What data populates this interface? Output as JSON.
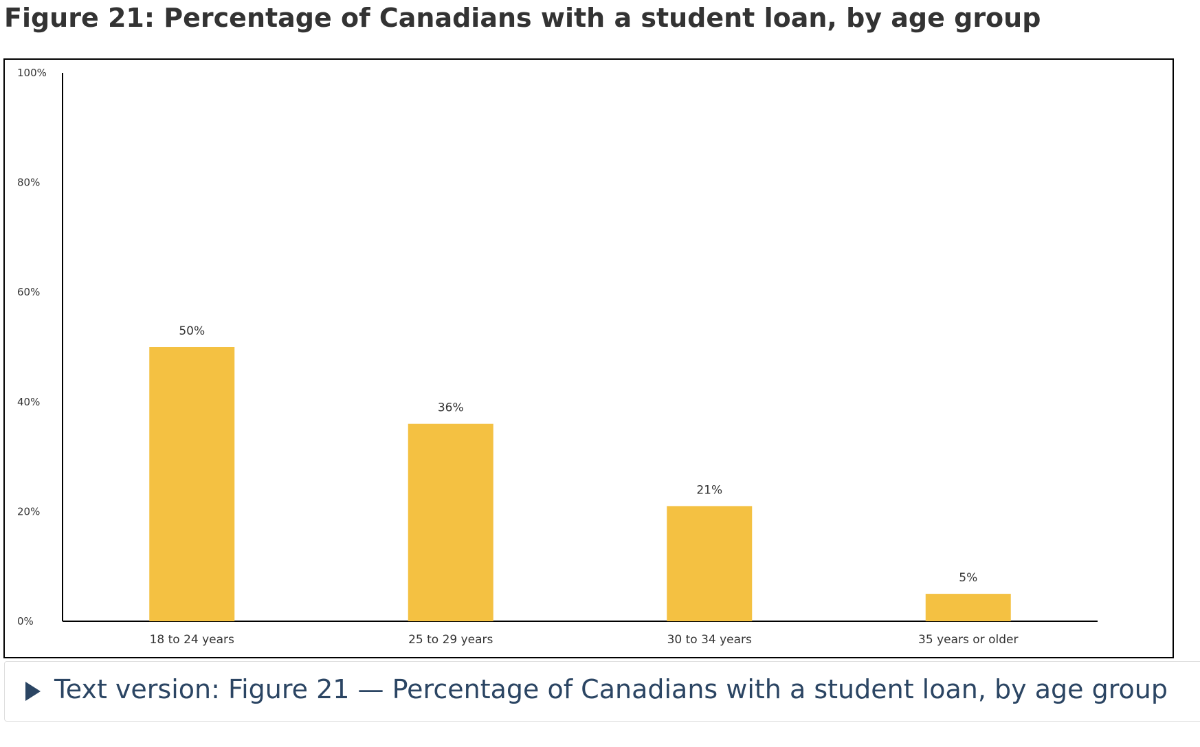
{
  "title": "Figure 21: Percentage of Canadians with a student loan, by age group",
  "details": {
    "summary": "Text version: Figure 21 — Percentage of Canadians with a student loan, by age group"
  },
  "colors": {
    "bar": "#F4C142",
    "axis": "#000000",
    "link": "#2B4563"
  },
  "chart_data": {
    "type": "bar",
    "title": "",
    "xlabel": "",
    "ylabel": "",
    "categories": [
      "18 to 24 years",
      "25 to 29 years",
      "30 to 34 years",
      "35 years or older"
    ],
    "values": [
      50,
      36,
      21,
      5
    ],
    "data_labels": [
      "50%",
      "36%",
      "21%",
      "5%"
    ],
    "ylim": [
      0,
      100
    ],
    "yticks": [
      0,
      20,
      40,
      60,
      80,
      100
    ],
    "ytick_labels": [
      "0%",
      "20%",
      "40%",
      "60%",
      "80%",
      "100%"
    ],
    "grid": false,
    "legend": "none"
  }
}
